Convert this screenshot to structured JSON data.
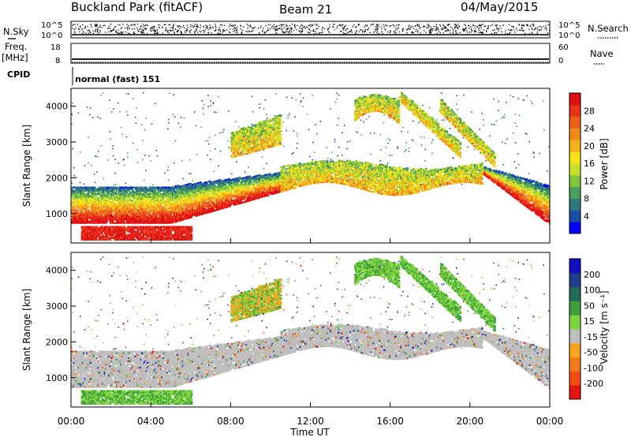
{
  "header": {
    "title": "Buckland Park (fitACF)",
    "beam": "Beam 21",
    "date": "04/May/2015"
  },
  "params": {
    "nsky_label": "N.Sky",
    "nsky_ticks": [
      "10^5",
      "10^0"
    ],
    "nsearch_label": "N.Search",
    "nsearch_ticks": [
      "10^5",
      "10^0"
    ],
    "freq_label": "Freq.",
    "freq_unit": "[MHz]",
    "freq_ticks": [
      "18",
      "8"
    ],
    "nave_label": "Nave",
    "nave_ticks": [
      "60",
      "0"
    ],
    "cpid_label": "CPID",
    "cpid_value": "normal (fast) 151"
  },
  "chart_data": [
    {
      "type": "heatmap",
      "name": "power",
      "ylabel": "Slant Range [km]",
      "ylim": [
        180,
        4500
      ],
      "yticks": [
        "1000",
        "2000",
        "3000",
        "4000"
      ],
      "xlim_hours": [
        0,
        24
      ],
      "colorbar_label": "Power [dB]",
      "colorbar_ticks": [
        "28",
        "24",
        "20",
        "16",
        "12",
        "8",
        "4"
      ],
      "colors": [
        "#0000ff",
        "#1a4fa8",
        "#2f7a7a",
        "#49a05c",
        "#7ec63b",
        "#c8df2a",
        "#f8e21a",
        "#f7b21a",
        "#f28a19",
        "#ee6018",
        "#e83518",
        "#e00f10"
      ],
      "echo_regions": [
        {
          "t_start": 0.0,
          "t_end": 5.0,
          "range_min": 700,
          "range_max": 1750,
          "level": "strong"
        },
        {
          "t_start": 5.0,
          "t_end": 11.0,
          "range_min": 900,
          "range_max": 2200,
          "level": "medium"
        },
        {
          "t_start": 8.0,
          "t_end": 10.5,
          "range_min": 2600,
          "range_max": 3600,
          "level": "medium"
        },
        {
          "t_start": 11.0,
          "t_end": 21.0,
          "range_min": 1700,
          "range_max": 2400,
          "level": "medium"
        },
        {
          "t_start": 14.0,
          "t_end": 18.5,
          "range_min": 3400,
          "range_max": 4400,
          "level": "medium"
        },
        {
          "t_start": 21.0,
          "t_end": 24.0,
          "range_min": 700,
          "range_max": 1800,
          "level": "strong"
        }
      ]
    },
    {
      "type": "heatmap",
      "name": "velocity",
      "ylabel": "Slant Range [km]",
      "ylim": [
        180,
        4500
      ],
      "yticks": [
        "1000",
        "2000",
        "3000",
        "4000"
      ],
      "xlim_hours": [
        0,
        24
      ],
      "xticks": [
        "00:00",
        "04:00",
        "08:00",
        "12:00",
        "16:00",
        "20:00",
        "00:00"
      ],
      "xlabel": "Time UT",
      "colorbar_label": "Velocity [m s⁻¹]",
      "colorbar_ticks": [
        "200",
        "100",
        "50",
        "15",
        "-15",
        "-50",
        "-100",
        "-200"
      ],
      "colors": [
        "#1010c0",
        "#1e3c8c",
        "#226a5a",
        "#3ca03a",
        "#7ed43c",
        "#bebebe",
        "#f8a41c",
        "#f47a18",
        "#f04c14",
        "#e81410"
      ],
      "ground_scatter_color": "#bebebe"
    }
  ]
}
